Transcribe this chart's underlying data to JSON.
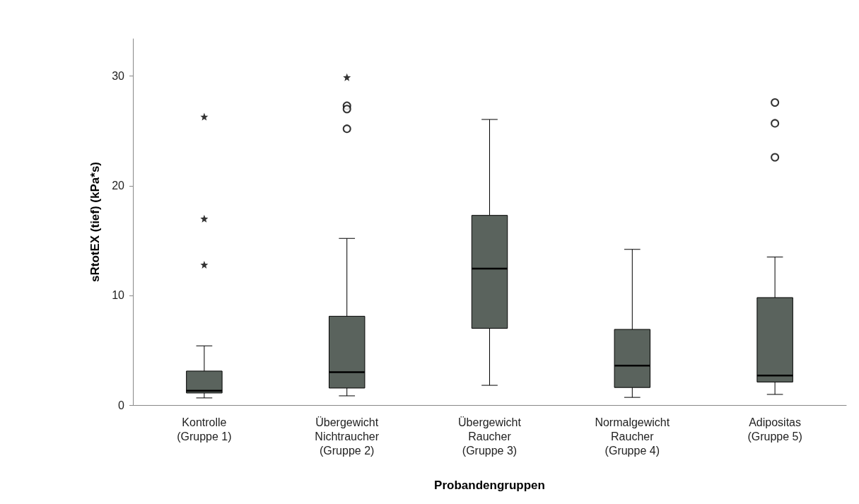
{
  "chart_data": {
    "type": "box",
    "xlabel": "Probandengruppen",
    "ylabel": "sRtotEX (tief) (kPa*s)",
    "categories": [
      "Kontrolle\n(Gruppe 1)",
      "Übergewicht\nNichtraucher\n(Gruppe 2)",
      "Übergewicht\nRaucher\n(Gruppe 3)",
      "Normalgewicht\nRaucher\n(Gruppe 4)",
      "Adipositas\n(Gruppe 5)"
    ],
    "color": "#5a635d",
    "marker": "circle",
    "grid": false,
    "legend": false,
    "boxes": [
      {
        "low": 0.65,
        "q1": 1.1,
        "median": 1.3,
        "q3": 3.1,
        "high": 5.4
      },
      {
        "low": 0.84,
        "q1": 1.55,
        "median": 3.0,
        "q3": 8.1,
        "high": 15.2,
        "outliers": [
          27.3,
          27.0,
          25.2
        ]
      },
      {
        "low": 1.8,
        "q1": 7.0,
        "median": 12.45,
        "q3": 17.3,
        "high": 26.05
      },
      {
        "low": 0.7,
        "q1": 1.6,
        "median": 3.6,
        "q3": 6.9,
        "high": 14.2
      },
      {
        "low": 0.97,
        "q1": 2.1,
        "median": 2.7,
        "q3": 9.8,
        "high": 13.5,
        "outliers": [
          27.6,
          25.7,
          22.6
        ]
      }
    ],
    "series": [
      {
        "type": "scatter",
        "marker": "star",
        "color": "#000000",
        "x": [
          "Kontrolle\n(Gruppe 1)",
          "Kontrolle\n(Gruppe 1)",
          "Kontrolle\n(Gruppe 1)",
          "Übergewicht\nNichtraucher\n(Gruppe 2)"
        ],
        "values": [
          26.3,
          17.0,
          12.8,
          29.9
        ]
      }
    ],
    "ylim": [
      0,
      33.4
    ],
    "yticks": [
      0,
      10,
      20,
      30
    ]
  }
}
